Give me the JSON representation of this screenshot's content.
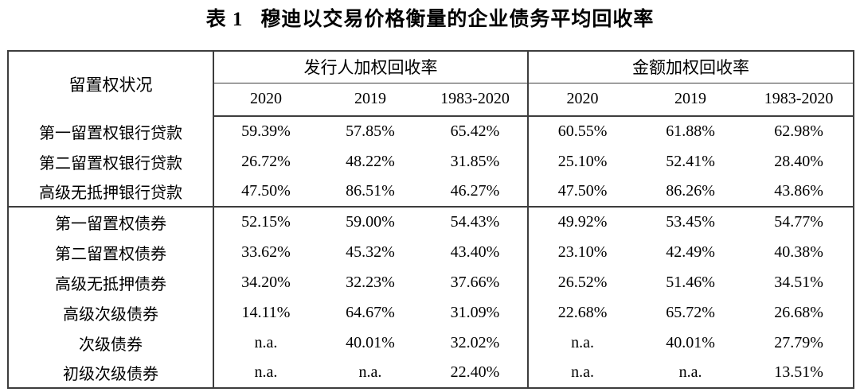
{
  "colors": {
    "background": "#ffffff",
    "text": "#000000",
    "border": "#3d3d3d"
  },
  "title": {
    "label": "表 1",
    "text": "穆迪以交易价格衡量的企业债务平均回收率"
  },
  "table": {
    "corner_header": "留置权状况",
    "groups": [
      {
        "label": "发行人加权回收率",
        "columns": [
          "2020",
          "2019",
          "1983-2020"
        ]
      },
      {
        "label": "金额加权回收率",
        "columns": [
          "2020",
          "2019",
          "1983-2020"
        ]
      }
    ],
    "row_groups": [
      {
        "name": "bank-loans",
        "rows": [
          {
            "label": "第一留置权银行贷款",
            "values": [
              "59.39%",
              "57.85%",
              "65.42%",
              "60.55%",
              "61.88%",
              "62.98%"
            ]
          },
          {
            "label": "第二留置权银行贷款",
            "values": [
              "26.72%",
              "48.22%",
              "31.85%",
              "25.10%",
              "52.41%",
              "28.40%"
            ]
          },
          {
            "label": "高级无抵押银行贷款",
            "values": [
              "47.50%",
              "86.51%",
              "46.27%",
              "47.50%",
              "86.26%",
              "43.86%"
            ]
          }
        ]
      },
      {
        "name": "bonds",
        "rows": [
          {
            "label": "第一留置权债券",
            "values": [
              "52.15%",
              "59.00%",
              "54.43%",
              "49.92%",
              "53.45%",
              "54.77%"
            ]
          },
          {
            "label": "第二留置权债券",
            "values": [
              "33.62%",
              "45.32%",
              "43.40%",
              "23.10%",
              "42.49%",
              "40.38%"
            ]
          },
          {
            "label": "高级无抵押债券",
            "values": [
              "34.20%",
              "32.23%",
              "37.66%",
              "26.52%",
              "51.46%",
              "34.51%"
            ]
          },
          {
            "label": "高级次级债券",
            "values": [
              "14.11%",
              "64.67%",
              "31.09%",
              "22.68%",
              "65.72%",
              "26.68%"
            ]
          },
          {
            "label": "次级债券",
            "values": [
              "n.a.",
              "40.01%",
              "32.02%",
              "n.a.",
              "40.01%",
              "27.79%"
            ]
          },
          {
            "label": "初级次级债券",
            "values": [
              "n.a.",
              "n.a.",
              "22.40%",
              "n.a.",
              "n.a.",
              "13.51%"
            ]
          }
        ]
      }
    ]
  }
}
